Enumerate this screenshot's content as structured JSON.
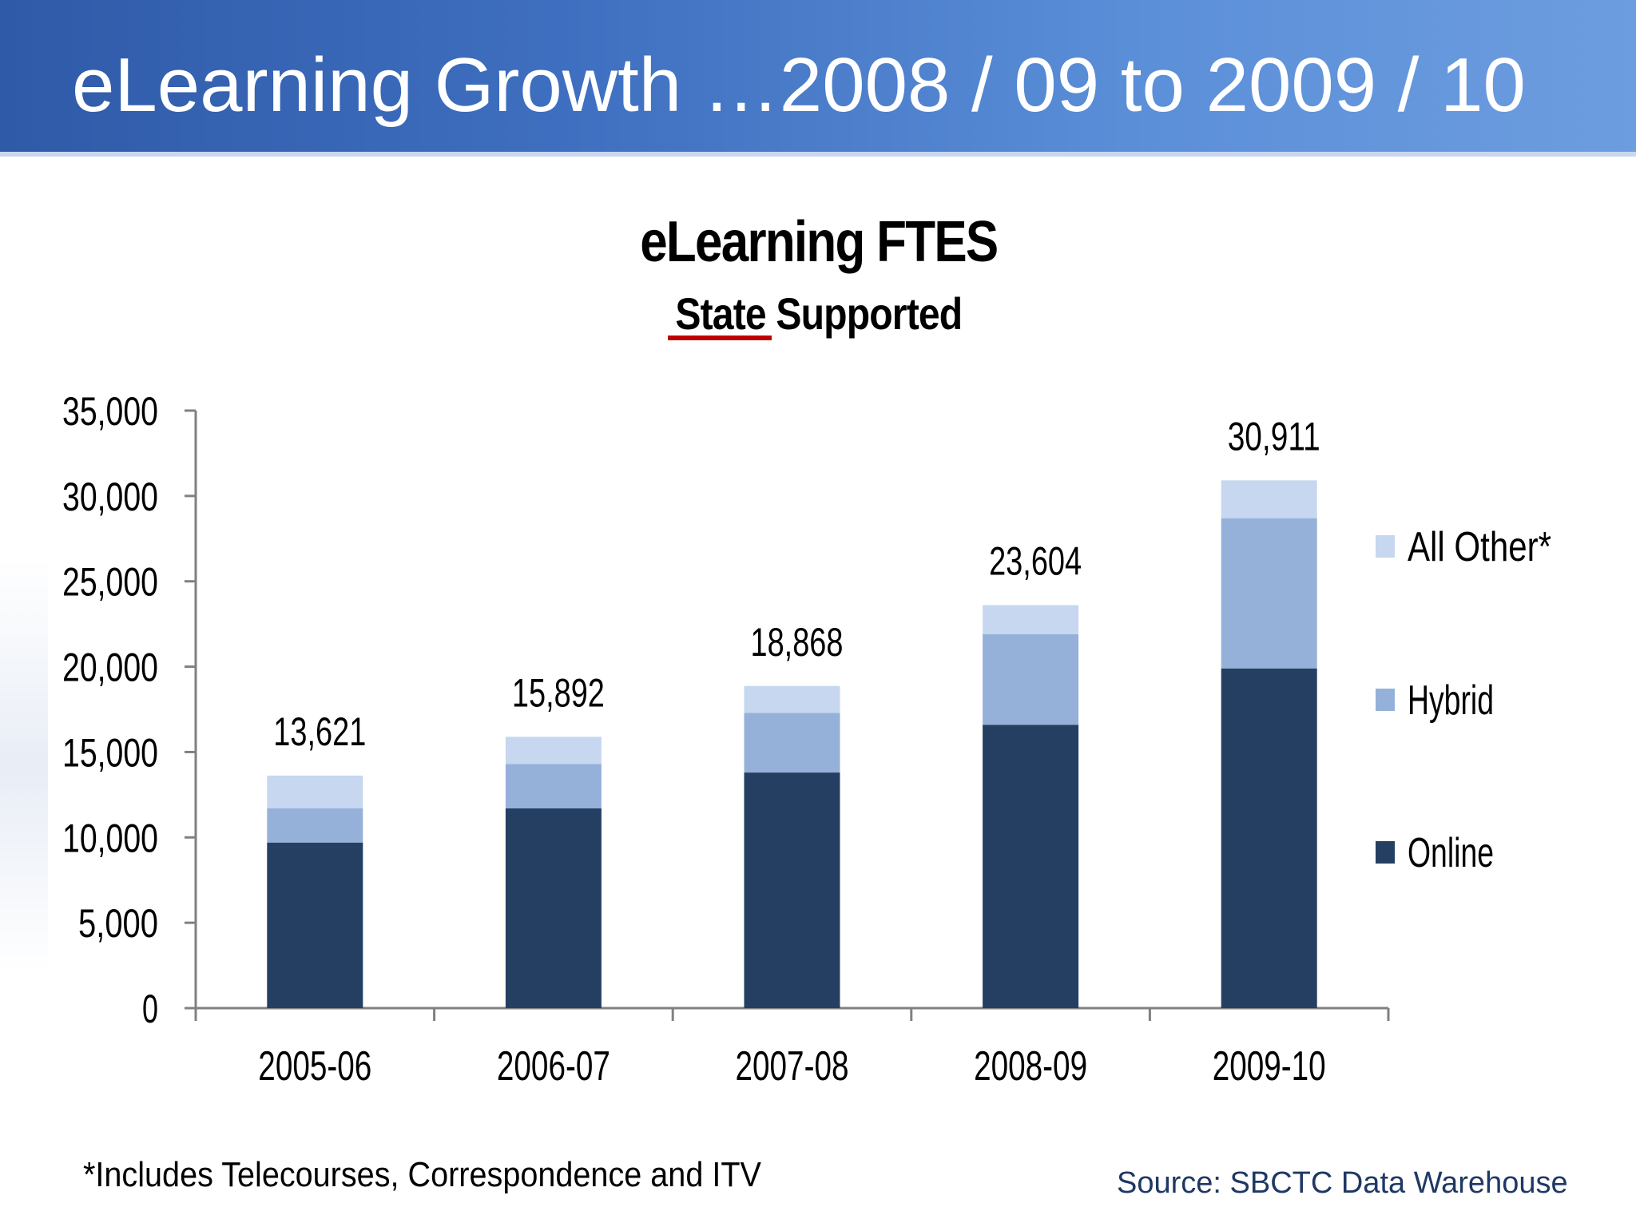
{
  "slide": {
    "title": "eLearning Growth …2008 / 09 to 2009 / 10",
    "footnote": "*Includes Telecourses, Correspondence and ITV",
    "source": "Source: SBCTC Data Warehouse"
  },
  "chart_data": {
    "type": "bar",
    "stacked": true,
    "title": "eLearning FTES",
    "subtitle": "State Supported",
    "categories": [
      "2005-06",
      "2006-07",
      "2007-08",
      "2008-09",
      "2009-10"
    ],
    "series": [
      {
        "name": "Online",
        "color": "#243f62",
        "values": [
          9700,
          11700,
          13800,
          16600,
          19900
        ]
      },
      {
        "name": "Hybrid",
        "color": "#96b1d9",
        "values": [
          2000,
          2600,
          3500,
          5300,
          8800
        ]
      },
      {
        "name": "All Other*",
        "color": "#c6d7ef",
        "values": [
          1921,
          1592,
          1568,
          1704,
          2211
        ]
      }
    ],
    "totals": [
      "13,621",
      "15,892",
      "18,868",
      "23,604",
      "30,911"
    ],
    "total_values": [
      13621,
      15892,
      18868,
      23604,
      30911
    ],
    "ylim": [
      0,
      35000
    ],
    "yticks": [
      "0",
      "5,000",
      "10,000",
      "15,000",
      "20,000",
      "25,000",
      "30,000",
      "35,000"
    ],
    "ytick_values": [
      0,
      5000,
      10000,
      15000,
      20000,
      25000,
      30000,
      35000
    ],
    "legend": [
      "All Other*",
      "Hybrid",
      "Online"
    ],
    "legend_position": "right",
    "grid": false
  }
}
